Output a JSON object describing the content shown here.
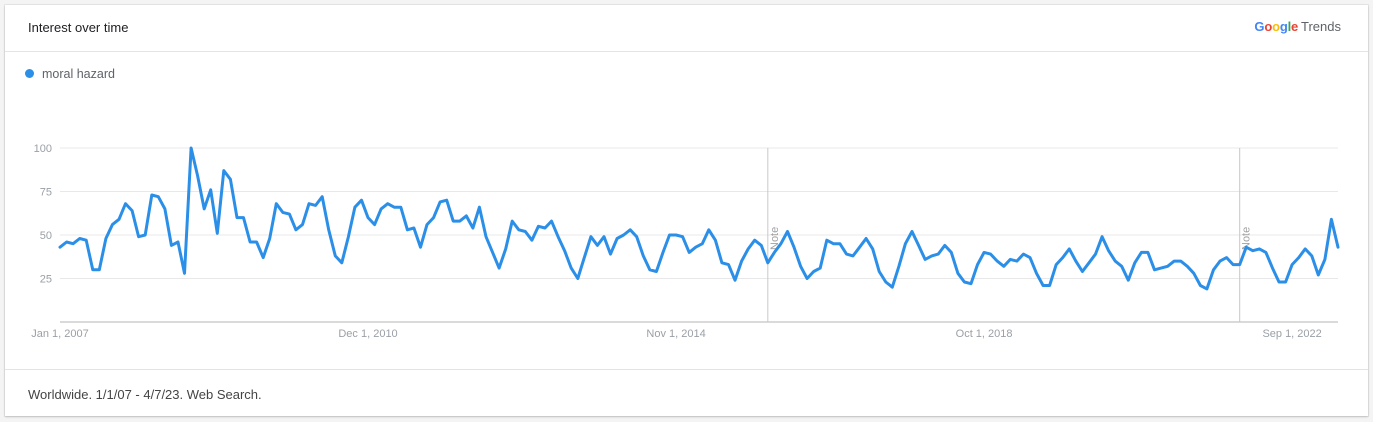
{
  "header": {
    "title": "Interest over time",
    "brand_google": "Google",
    "brand_trends": "Trends"
  },
  "footer": {
    "text": "Worldwide. 1/1/07 - 4/7/23. Web Search."
  },
  "colors": {
    "series": "#2b8fe8",
    "grid": "#e8e8e8",
    "axis": "#b5b5b5",
    "note_line": "#c8c8c8",
    "tick_text": "#9aa0a6"
  },
  "chart_data": {
    "type": "line",
    "title": "Interest over time",
    "ylim": [
      0,
      100
    ],
    "y_ticks": [
      25,
      50,
      75,
      100
    ],
    "x_range": [
      "2007-01-01",
      "2023-04-01"
    ],
    "x_ticks": [
      {
        "date": "2007-01-01",
        "label": "Jan 1, 2007"
      },
      {
        "date": "2010-12-01",
        "label": "Dec 1, 2010"
      },
      {
        "date": "2014-11-01",
        "label": "Nov 1, 2014"
      },
      {
        "date": "2018-10-01",
        "label": "Oct 1, 2018"
      },
      {
        "date": "2022-09-01",
        "label": "Sep 1, 2022"
      }
    ],
    "notes": [
      {
        "date": "2016-01-01",
        "label": "Note"
      },
      {
        "date": "2022-01-01",
        "label": "Note"
      }
    ],
    "grid": true,
    "legend_position": "top-left",
    "series": [
      {
        "name": "moral hazard",
        "color": "#2b8fe8",
        "start": "2007-01",
        "frequency": "monthly",
        "values": [
          43,
          46,
          45,
          48,
          47,
          30,
          30,
          48,
          56,
          59,
          68,
          64,
          49,
          50,
          73,
          72,
          65,
          44,
          46,
          28,
          100,
          84,
          65,
          76,
          51,
          87,
          82,
          60,
          60,
          46,
          46,
          37,
          48,
          68,
          63,
          62,
          53,
          56,
          68,
          67,
          72,
          53,
          38,
          34,
          49,
          66,
          70,
          60,
          56,
          65,
          68,
          66,
          66,
          53,
          54,
          43,
          56,
          60,
          69,
          70,
          58,
          58,
          61,
          54,
          66,
          49,
          40,
          31,
          42,
          58,
          53,
          52,
          47,
          55,
          54,
          58,
          49,
          41,
          31,
          25,
          37,
          49,
          44,
          49,
          39,
          48,
          50,
          53,
          49,
          38,
          30,
          29,
          40,
          50,
          50,
          49,
          40,
          43,
          45,
          53,
          47,
          34,
          33,
          24,
          35,
          42,
          47,
          44,
          34,
          40,
          45,
          52,
          43,
          32,
          25,
          29,
          31,
          47,
          45,
          45,
          39,
          38,
          43,
          48,
          42,
          29,
          23,
          20,
          32,
          45,
          52,
          44,
          36,
          38,
          39,
          44,
          40,
          28,
          23,
          22,
          33,
          40,
          39,
          35,
          32,
          36,
          35,
          39,
          37,
          28,
          21,
          21,
          33,
          37,
          42,
          35,
          29,
          34,
          39,
          49,
          41,
          35,
          32,
          24,
          34,
          40,
          40,
          30,
          31,
          32,
          35,
          35,
          32,
          28,
          21,
          19,
          30,
          35,
          37,
          33,
          33,
          43,
          41,
          42,
          40,
          31,
          23,
          23,
          33,
          37,
          42,
          38,
          27,
          36,
          59,
          43
        ]
      }
    ]
  }
}
